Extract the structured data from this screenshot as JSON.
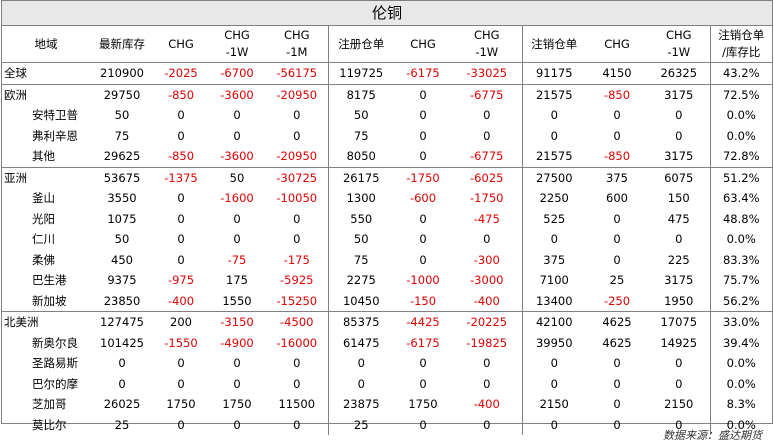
{
  "title": "伦铜",
  "headers": [
    [
      "地域"
    ],
    [
      "最新库存"
    ],
    [
      "CHG"
    ],
    [
      "CHG",
      "-1W"
    ],
    [
      "CHG",
      "-1M"
    ],
    [
      "注册仓单"
    ],
    [
      "CHG"
    ],
    [
      "CHG",
      "-1W"
    ],
    [
      "注销仓单"
    ],
    [
      "CHG"
    ],
    [
      "CHG",
      "-1W"
    ],
    [
      "注销仓单",
      "/库存比"
    ]
  ],
  "rows": [
    {
      "name": "全球",
      "level": "region",
      "values": [
        "210900",
        "-2025",
        "-6700",
        "-56175",
        "119725",
        "-6175",
        "-33025",
        "91175",
        "4150",
        "26325",
        "43.2%"
      ]
    },
    {
      "name": "欧洲",
      "level": "region",
      "values": [
        "29750",
        "-850",
        "-3600",
        "-20950",
        "8175",
        "0",
        "-6775",
        "21575",
        "-850",
        "3175",
        "72.5%"
      ]
    },
    {
      "name": "安特卫普",
      "level": "sub",
      "values": [
        "50",
        "0",
        "0",
        "0",
        "50",
        "0",
        "0",
        "0",
        "0",
        "0",
        "0.0%"
      ]
    },
    {
      "name": "弗利辛恩",
      "level": "sub",
      "values": [
        "75",
        "0",
        "0",
        "0",
        "75",
        "0",
        "0",
        "0",
        "0",
        "0",
        "0.0%"
      ]
    },
    {
      "name": "其他",
      "level": "sub",
      "values": [
        "29625",
        "-850",
        "-3600",
        "-20950",
        "8050",
        "0",
        "-6775",
        "21575",
        "-850",
        "3175",
        "72.8%"
      ]
    },
    {
      "name": "亚洲",
      "level": "region",
      "values": [
        "53675",
        "-1375",
        "50",
        "-30725",
        "26175",
        "-1750",
        "-6025",
        "27500",
        "375",
        "6075",
        "51.2%"
      ]
    },
    {
      "name": "釜山",
      "level": "sub",
      "values": [
        "3550",
        "0",
        "-1600",
        "-10050",
        "1300",
        "-600",
        "-1750",
        "2250",
        "600",
        "150",
        "63.4%"
      ]
    },
    {
      "name": "光阳",
      "level": "sub",
      "values": [
        "1075",
        "0",
        "0",
        "0",
        "550",
        "0",
        "-475",
        "525",
        "0",
        "475",
        "48.8%"
      ]
    },
    {
      "name": "仁川",
      "level": "sub",
      "values": [
        "50",
        "0",
        "0",
        "0",
        "50",
        "0",
        "0",
        "0",
        "0",
        "0",
        "0.0%"
      ]
    },
    {
      "name": "柔佛",
      "level": "sub",
      "values": [
        "450",
        "0",
        "-75",
        "-175",
        "75",
        "0",
        "-300",
        "375",
        "0",
        "225",
        "83.3%"
      ]
    },
    {
      "name": "巴生港",
      "level": "sub",
      "values": [
        "9375",
        "-975",
        "175",
        "-5925",
        "2275",
        "-1000",
        "-3000",
        "7100",
        "25",
        "3175",
        "75.7%"
      ]
    },
    {
      "name": "新加坡",
      "level": "sub",
      "values": [
        "23850",
        "-400",
        "1550",
        "-15250",
        "10450",
        "-150",
        "-400",
        "13400",
        "-250",
        "1950",
        "56.2%"
      ]
    },
    {
      "name": "北美洲",
      "level": "region",
      "values": [
        "127475",
        "200",
        "-3150",
        "-4500",
        "85375",
        "-4425",
        "-20225",
        "42100",
        "4625",
        "17075",
        "33.0%"
      ]
    },
    {
      "name": "新奥尔良",
      "level": "sub",
      "values": [
        "101425",
        "-1550",
        "-4900",
        "-16000",
        "61475",
        "-6175",
        "-19825",
        "39950",
        "4625",
        "14925",
        "39.4%"
      ]
    },
    {
      "name": "圣路易斯",
      "level": "sub",
      "values": [
        "0",
        "0",
        "0",
        "0",
        "0",
        "0",
        "0",
        "0",
        "0",
        "0",
        "0.0%"
      ]
    },
    {
      "name": "巴尔的摩",
      "level": "sub",
      "values": [
        "0",
        "0",
        "0",
        "0",
        "0",
        "0",
        "0",
        "0",
        "0",
        "0",
        "0.0%"
      ]
    },
    {
      "name": "芝加哥",
      "level": "sub",
      "values": [
        "26025",
        "1750",
        "1750",
        "11500",
        "23875",
        "1750",
        "-400",
        "2150",
        "0",
        "2150",
        "8.3%"
      ]
    },
    {
      "name": "莫比尔",
      "level": "sub",
      "values": [
        "25",
        "0",
        "0",
        "0",
        "25",
        "0",
        "0",
        "0",
        "0",
        "0",
        "0.0%"
      ]
    }
  ],
  "source_note": "数据来源：盛达期货",
  "colors": {
    "negative": "#e00000",
    "border": "#808080",
    "title_bg": "#e8e8e8"
  }
}
